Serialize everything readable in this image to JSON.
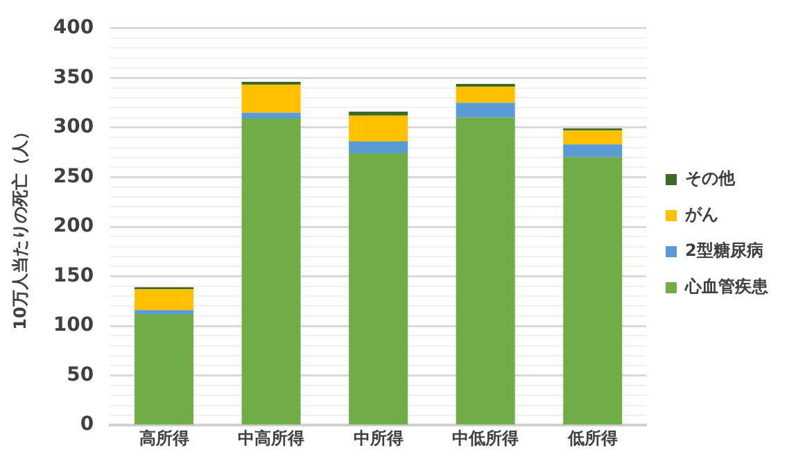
{
  "chart_data": {
    "type": "bar",
    "stacked": true,
    "ylabel": "10万人当たりの死亡（人）",
    "categories": [
      "高所得",
      "中高所得",
      "中所得",
      "中低所得",
      "低所得"
    ],
    "series": [
      {
        "name": "心血管疾患",
        "color": "#70ad47",
        "values": [
          112,
          309,
          274,
          310,
          270
        ]
      },
      {
        "name": "2型糖尿病",
        "color": "#5b9bd5",
        "values": [
          4,
          6,
          12,
          15,
          13
        ]
      },
      {
        "name": "がん",
        "color": "#ffc000",
        "values": [
          21,
          28,
          26,
          16,
          14
        ]
      },
      {
        "name": "その他",
        "color": "#3d6b27",
        "values": [
          2,
          3,
          4,
          3,
          2
        ]
      }
    ],
    "ylim": [
      0,
      400
    ],
    "yticks": [
      0,
      {
        "value": 10,
        "label": null
      },
      {
        "value": 20,
        "label": null
      },
      {
        "value": 30,
        "label": null
      },
      {
        "value": 40,
        "label": null
      },
      50,
      {
        "value": 60,
        "label": null
      },
      {
        "value": 70,
        "label": null
      },
      {
        "value": 80,
        "label": null
      },
      {
        "value": 90,
        "label": null
      },
      100,
      {
        "value": 110,
        "label": null
      },
      {
        "value": 120,
        "label": null
      },
      {
        "value": 130,
        "label": null
      },
      {
        "value": 140,
        "label": null
      },
      150,
      {
        "value": 160,
        "label": null
      },
      {
        "value": 170,
        "label": null
      },
      {
        "value": 180,
        "label": null
      },
      {
        "value": 190,
        "label": null
      },
      200,
      {
        "value": 210,
        "label": null
      },
      {
        "value": 220,
        "label": null
      },
      {
        "value": 230,
        "label": null
      },
      {
        "value": 240,
        "label": null
      },
      250,
      {
        "value": 260,
        "label": null
      },
      {
        "value": 270,
        "label": null
      },
      {
        "value": 280,
        "label": null
      },
      {
        "value": 290,
        "label": null
      },
      300,
      {
        "value": 310,
        "label": null
      },
      {
        "value": 320,
        "label": null
      },
      {
        "value": 330,
        "label": null
      },
      {
        "value": 340,
        "label": null
      },
      350,
      {
        "value": 360,
        "label": null
      },
      {
        "value": 370,
        "label": null
      },
      {
        "value": 380,
        "label": null
      },
      {
        "value": 390,
        "label": null
      },
      400
    ],
    "grid": "y",
    "legend": "right"
  }
}
